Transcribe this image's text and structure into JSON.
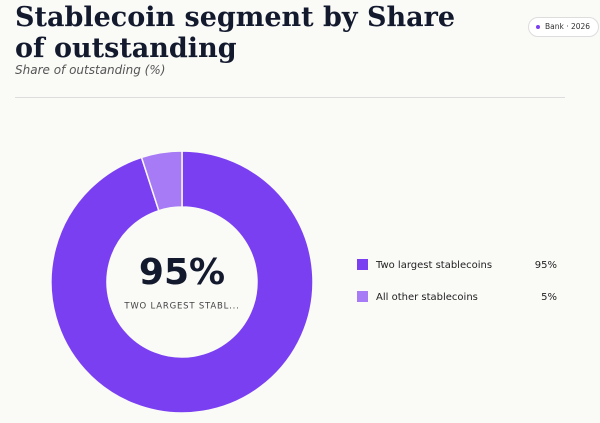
{
  "chart_data": {
    "type": "pie",
    "title": "Stablecoin segment by Share of outstanding",
    "subtitle": "Share of outstanding (%)",
    "badge": "Bank · 2026",
    "categories": [
      "Two largest stablecoins",
      "All other stablecoins"
    ],
    "values": [
      95,
      5
    ],
    "value_labels": [
      "95%",
      "5%"
    ],
    "colors": [
      "#7b3ff2",
      "#a77bf5"
    ],
    "center_label": "TWO LARGEST STABL..."
  }
}
